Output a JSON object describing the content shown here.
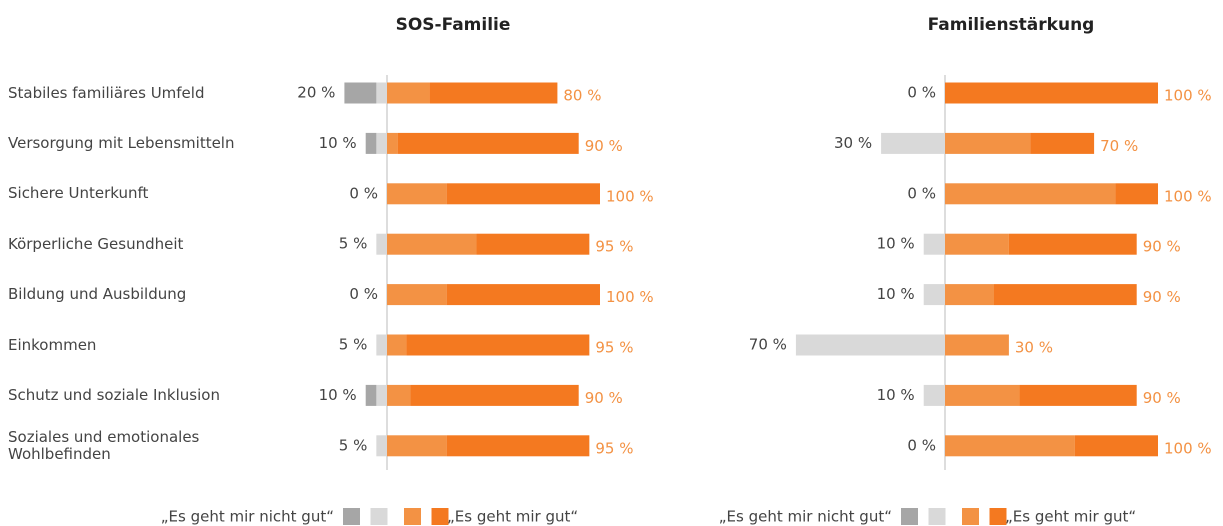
{
  "chart_data": [
    {
      "type": "diverging-bar",
      "title": "SOS-Familie",
      "categories": [
        "Stabiles familiäres Umfeld",
        "Versorgung mit Lebensmitteln",
        "Sichere Unterkunft",
        "Körperliche Gesundheit",
        "Bildung und Ausbildung",
        "Einkommen",
        "Schutz und soziale Inklusion",
        "Soziales und emotionales Wohlbefinden"
      ],
      "xlim": [
        -100,
        100
      ],
      "series": [
        {
          "color": "#a6a6a6",
          "side": "left",
          "values": [
            15,
            5,
            0,
            0,
            0,
            0,
            5,
            0
          ]
        },
        {
          "color": "#d9d9d9",
          "side": "left",
          "values": [
            5,
            5,
            0,
            5,
            0,
            5,
            5,
            5
          ]
        },
        {
          "color": "#f39244",
          "side": "right",
          "values": [
            20,
            5,
            28,
            42,
            28,
            9,
            11,
            28
          ]
        },
        {
          "color": "#f47920",
          "side": "right",
          "values": [
            60,
            85,
            72,
            53,
            72,
            86,
            79,
            67
          ]
        }
      ],
      "totals_left": {
        "values": [
          20,
          10,
          0,
          5,
          0,
          5,
          10,
          5
        ],
        "value_labels": [
          "20 %",
          "10 %",
          "0 %",
          "5 %",
          "0 %",
          "5 %",
          "10 %",
          "5 %"
        ]
      },
      "totals_right": {
        "values": [
          80,
          90,
          100,
          95,
          100,
          95,
          90,
          95
        ],
        "value_labels": [
          "80 %",
          "90 %",
          "100 %",
          "95 %",
          "100 %",
          "95 %",
          "90 %",
          "95 %"
        ]
      },
      "legend": {
        "left": "„Es geht mir nicht gut“",
        "right": "„Es geht mir gut“"
      }
    },
    {
      "type": "diverging-bar",
      "title": "Familienstärkung",
      "xlim": [
        -100,
        100
      ],
      "series": [
        {
          "color": "#a6a6a6",
          "side": "left",
          "values": [
            0,
            0,
            0,
            0,
            0,
            0,
            0,
            0
          ]
        },
        {
          "color": "#d9d9d9",
          "side": "left",
          "values": [
            0,
            30,
            0,
            10,
            10,
            70,
            10,
            0
          ]
        },
        {
          "color": "#f39244",
          "side": "right",
          "values": [
            0,
            40,
            80,
            30,
            23,
            30,
            35,
            61
          ]
        },
        {
          "color": "#f47920",
          "side": "right",
          "values": [
            100,
            30,
            20,
            60,
            67,
            0,
            55,
            39
          ]
        }
      ],
      "totals_left": {
        "values": [
          0,
          30,
          0,
          10,
          10,
          70,
          10,
          0
        ],
        "value_labels": [
          "0 %",
          "30 %",
          "0 %",
          "10 %",
          "10 %",
          "70 %",
          "10 %",
          "0 %"
        ]
      },
      "totals_right": {
        "values": [
          100,
          70,
          100,
          90,
          90,
          30,
          90,
          100
        ],
        "value_labels": [
          "100 %",
          "70 %",
          "100 %",
          "90 %",
          "90 %",
          "30 %",
          "90 %",
          "100 %"
        ]
      },
      "legend": {
        "left": "„Es geht mir nicht gut“",
        "right": "„Es geht mir gut“"
      }
    }
  ]
}
